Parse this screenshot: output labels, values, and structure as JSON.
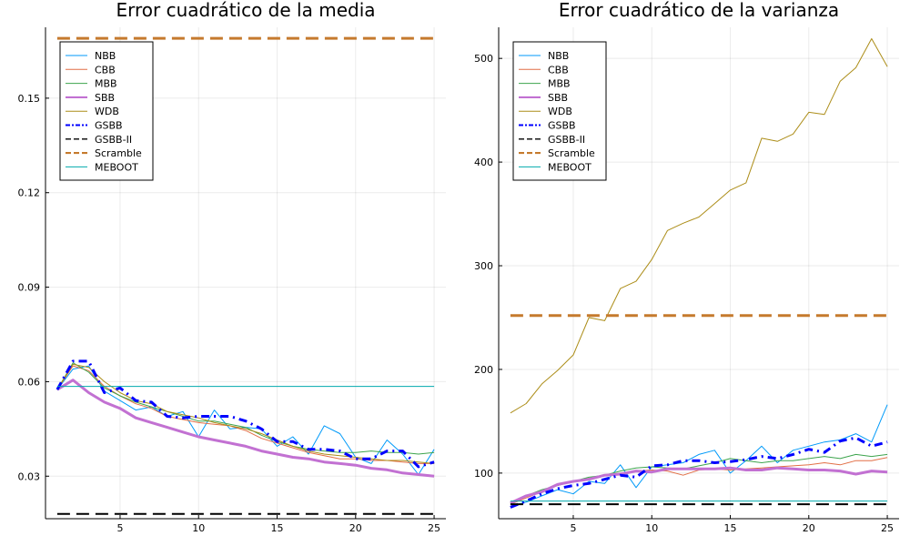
{
  "colors": {
    "NBB": "#009af9",
    "CBB": "#e26f46",
    "MBB": "#3da44d",
    "SBB": "#c271d2",
    "WDB": "#ac8d18",
    "GSBB": "#0000ff",
    "GSBB-II": "#000000",
    "Scramble": "#c57a2d",
    "MEBOOT": "#00a9ad"
  },
  "chart_data": [
    {
      "type": "line",
      "title": "Error cuadrático de la media",
      "xlabel": "",
      "ylabel": "",
      "xlim": [
        0.25,
        25.75
      ],
      "ylim": [
        0.0165,
        0.1725
      ],
      "xticks": [
        5,
        10,
        15,
        20,
        25
      ],
      "yticks": [
        0.03,
        0.06,
        0.09,
        0.12,
        0.15
      ],
      "ytick_labels": [
        "0.03",
        "0.06",
        "0.09",
        "0.12",
        "0.15"
      ],
      "grid": true,
      "legend_position": "top-left",
      "x": [
        1,
        2,
        3,
        4,
        5,
        6,
        7,
        8,
        9,
        10,
        11,
        12,
        13,
        14,
        15,
        16,
        17,
        18,
        19,
        20,
        21,
        22,
        23,
        24,
        25
      ],
      "series": [
        {
          "name": "NBB",
          "style": "solid",
          "width": 1,
          "values": [
            0.0575,
            0.064,
            0.065,
            0.057,
            0.054,
            0.051,
            0.052,
            0.049,
            0.0505,
            0.0425,
            0.051,
            0.045,
            0.0455,
            0.045,
            0.0395,
            0.0425,
            0.037,
            0.046,
            0.0435,
            0.036,
            0.034,
            0.0415,
            0.037,
            0.0305,
            0.0385
          ]
        },
        {
          "name": "CBB",
          "style": "solid",
          "width": 1,
          "values": [
            0.0575,
            0.065,
            0.0635,
            0.0585,
            0.0555,
            0.053,
            0.0515,
            0.049,
            0.048,
            0.047,
            0.0465,
            0.046,
            0.0445,
            0.042,
            0.0405,
            0.039,
            0.0375,
            0.0365,
            0.0355,
            0.0355,
            0.035,
            0.035,
            0.0345,
            0.034,
            0.034
          ]
        },
        {
          "name": "MBB",
          "style": "solid",
          "width": 1,
          "values": [
            0.0575,
            0.066,
            0.063,
            0.058,
            0.0555,
            0.0535,
            0.052,
            0.0505,
            0.049,
            0.0475,
            0.0475,
            0.0465,
            0.0455,
            0.043,
            0.041,
            0.0395,
            0.0385,
            0.038,
            0.0375,
            0.0375,
            0.038,
            0.0375,
            0.0375,
            0.037,
            0.0375
          ]
        },
        {
          "name": "SBB",
          "style": "solid",
          "width": 3,
          "values": [
            0.0575,
            0.0605,
            0.0565,
            0.0535,
            0.0515,
            0.0485,
            0.047,
            0.0455,
            0.044,
            0.0425,
            0.0415,
            0.0405,
            0.0395,
            0.038,
            0.037,
            0.036,
            0.0355,
            0.0345,
            0.034,
            0.0335,
            0.0325,
            0.032,
            0.031,
            0.0305,
            0.03
          ]
        },
        {
          "name": "WDB",
          "style": "solid",
          "width": 1,
          "values": [
            0.0575,
            0.0655,
            0.0645,
            0.06,
            0.0565,
            0.054,
            0.053,
            0.0505,
            0.0495,
            0.0485,
            0.047,
            0.046,
            0.045,
            0.0435,
            0.0415,
            0.0395,
            0.038,
            0.037,
            0.0365,
            0.036,
            0.0355,
            0.035,
            0.035,
            0.0345,
            0.034
          ]
        },
        {
          "name": "GSBB",
          "style": "dashdot",
          "width": 3,
          "values": [
            0.0575,
            0.0665,
            0.0665,
            0.0565,
            0.058,
            0.054,
            0.0535,
            0.049,
            0.0485,
            0.049,
            0.049,
            0.049,
            0.0475,
            0.045,
            0.041,
            0.041,
            0.0385,
            0.0385,
            0.038,
            0.0355,
            0.0355,
            0.038,
            0.038,
            0.033,
            0.0345
          ]
        },
        {
          "name": "GSBB-II",
          "style": "dash",
          "width": 2,
          "values": [
            0.018,
            0.018,
            0.018,
            0.018,
            0.018,
            0.018,
            0.018,
            0.018,
            0.018,
            0.018,
            0.018,
            0.018,
            0.018,
            0.018,
            0.018,
            0.018,
            0.018,
            0.018,
            0.018,
            0.018,
            0.018,
            0.018,
            0.018,
            0.018,
            0.018
          ]
        },
        {
          "name": "Scramble",
          "style": "dash",
          "width": 3,
          "values": [
            0.169,
            0.169,
            0.169,
            0.169,
            0.169,
            0.169,
            0.169,
            0.169,
            0.169,
            0.169,
            0.169,
            0.169,
            0.169,
            0.169,
            0.169,
            0.169,
            0.169,
            0.169,
            0.169,
            0.169,
            0.169,
            0.169,
            0.169,
            0.169,
            0.169
          ]
        },
        {
          "name": "MEBOOT",
          "style": "solid",
          "width": 1,
          "values": [
            0.0585,
            0.0585,
            0.0585,
            0.0585,
            0.0585,
            0.0585,
            0.0585,
            0.0585,
            0.0585,
            0.0585,
            0.0585,
            0.0585,
            0.0585,
            0.0585,
            0.0585,
            0.0585,
            0.0585,
            0.0585,
            0.0585,
            0.0585,
            0.0585,
            0.0585,
            0.0585,
            0.0585,
            0.0585
          ]
        }
      ]
    },
    {
      "type": "line",
      "title": "Error cuadrático de la varianza",
      "xlabel": "",
      "ylabel": "",
      "xlim": [
        0.25,
        25.75
      ],
      "ylim": [
        56,
        530
      ],
      "xticks": [
        5,
        10,
        15,
        20,
        25
      ],
      "yticks": [
        100,
        200,
        300,
        400,
        500
      ],
      "ytick_labels": [
        "100",
        "200",
        "300",
        "400",
        "500"
      ],
      "grid": true,
      "legend_position": "top-left",
      "x": [
        1,
        2,
        3,
        4,
        5,
        6,
        7,
        8,
        9,
        10,
        11,
        12,
        13,
        14,
        15,
        16,
        17,
        18,
        19,
        20,
        21,
        22,
        23,
        24,
        25
      ],
      "series": [
        {
          "name": "NBB",
          "style": "solid",
          "width": 1,
          "values": [
            68,
            72,
            78,
            84,
            80,
            92,
            90,
            108,
            86,
            106,
            108,
            110,
            118,
            122,
            100,
            112,
            126,
            110,
            122,
            126,
            130,
            132,
            138,
            130,
            166
          ]
        },
        {
          "name": "CBB",
          "style": "solid",
          "width": 1,
          "values": [
            70,
            76,
            82,
            88,
            92,
            95,
            98,
            100,
            102,
            103,
            102,
            98,
            103,
            104,
            103,
            104,
            105,
            106,
            107,
            108,
            110,
            108,
            112,
            112,
            115
          ]
        },
        {
          "name": "MBB",
          "style": "solid",
          "width": 1,
          "values": [
            72,
            78,
            84,
            88,
            92,
            96,
            98,
            102,
            105,
            106,
            105,
            104,
            107,
            110,
            114,
            112,
            110,
            112,
            112,
            114,
            116,
            114,
            118,
            116,
            118
          ]
        },
        {
          "name": "SBB",
          "style": "solid",
          "width": 3,
          "values": [
            71,
            78,
            82,
            89,
            92,
            94,
            98,
            99,
            102,
            101,
            104,
            104,
            104,
            104,
            105,
            103,
            103,
            105,
            104,
            103,
            103,
            102,
            99,
            102,
            101
          ]
        },
        {
          "name": "WDB",
          "style": "solid",
          "width": 1,
          "values": [
            158,
            167,
            186,
            199,
            214,
            250,
            247,
            278,
            285,
            306,
            334,
            341,
            347,
            360,
            373,
            380,
            423,
            420,
            427,
            448,
            446,
            478,
            491,
            519,
            492
          ]
        },
        {
          "name": "GSBB",
          "style": "dashdot",
          "width": 3,
          "values": [
            67,
            73,
            80,
            85,
            88,
            90,
            94,
            98,
            96,
            107,
            108,
            112,
            112,
            110,
            111,
            113,
            116,
            114,
            118,
            123,
            120,
            131,
            134,
            126,
            130
          ]
        },
        {
          "name": "GSBB-II",
          "style": "dash",
          "width": 2,
          "values": [
            70,
            70,
            70,
            70,
            70,
            70,
            70,
            70,
            70,
            70,
            70,
            70,
            70,
            70,
            70,
            70,
            70,
            70,
            70,
            70,
            70,
            70,
            70,
            70,
            70
          ]
        },
        {
          "name": "Scramble",
          "style": "dash",
          "width": 3,
          "values": [
            252,
            252,
            252,
            252,
            252,
            252,
            252,
            252,
            252,
            252,
            252,
            252,
            252,
            252,
            252,
            252,
            252,
            252,
            252,
            252,
            252,
            252,
            252,
            252,
            252
          ]
        },
        {
          "name": "MEBOOT",
          "style": "solid",
          "width": 1,
          "values": [
            73,
            73,
            73,
            73,
            73,
            73,
            73,
            73,
            73,
            73,
            73,
            73,
            73,
            73,
            73,
            73,
            73,
            73,
            73,
            73,
            73,
            73,
            73,
            73,
            73
          ]
        }
      ]
    }
  ]
}
